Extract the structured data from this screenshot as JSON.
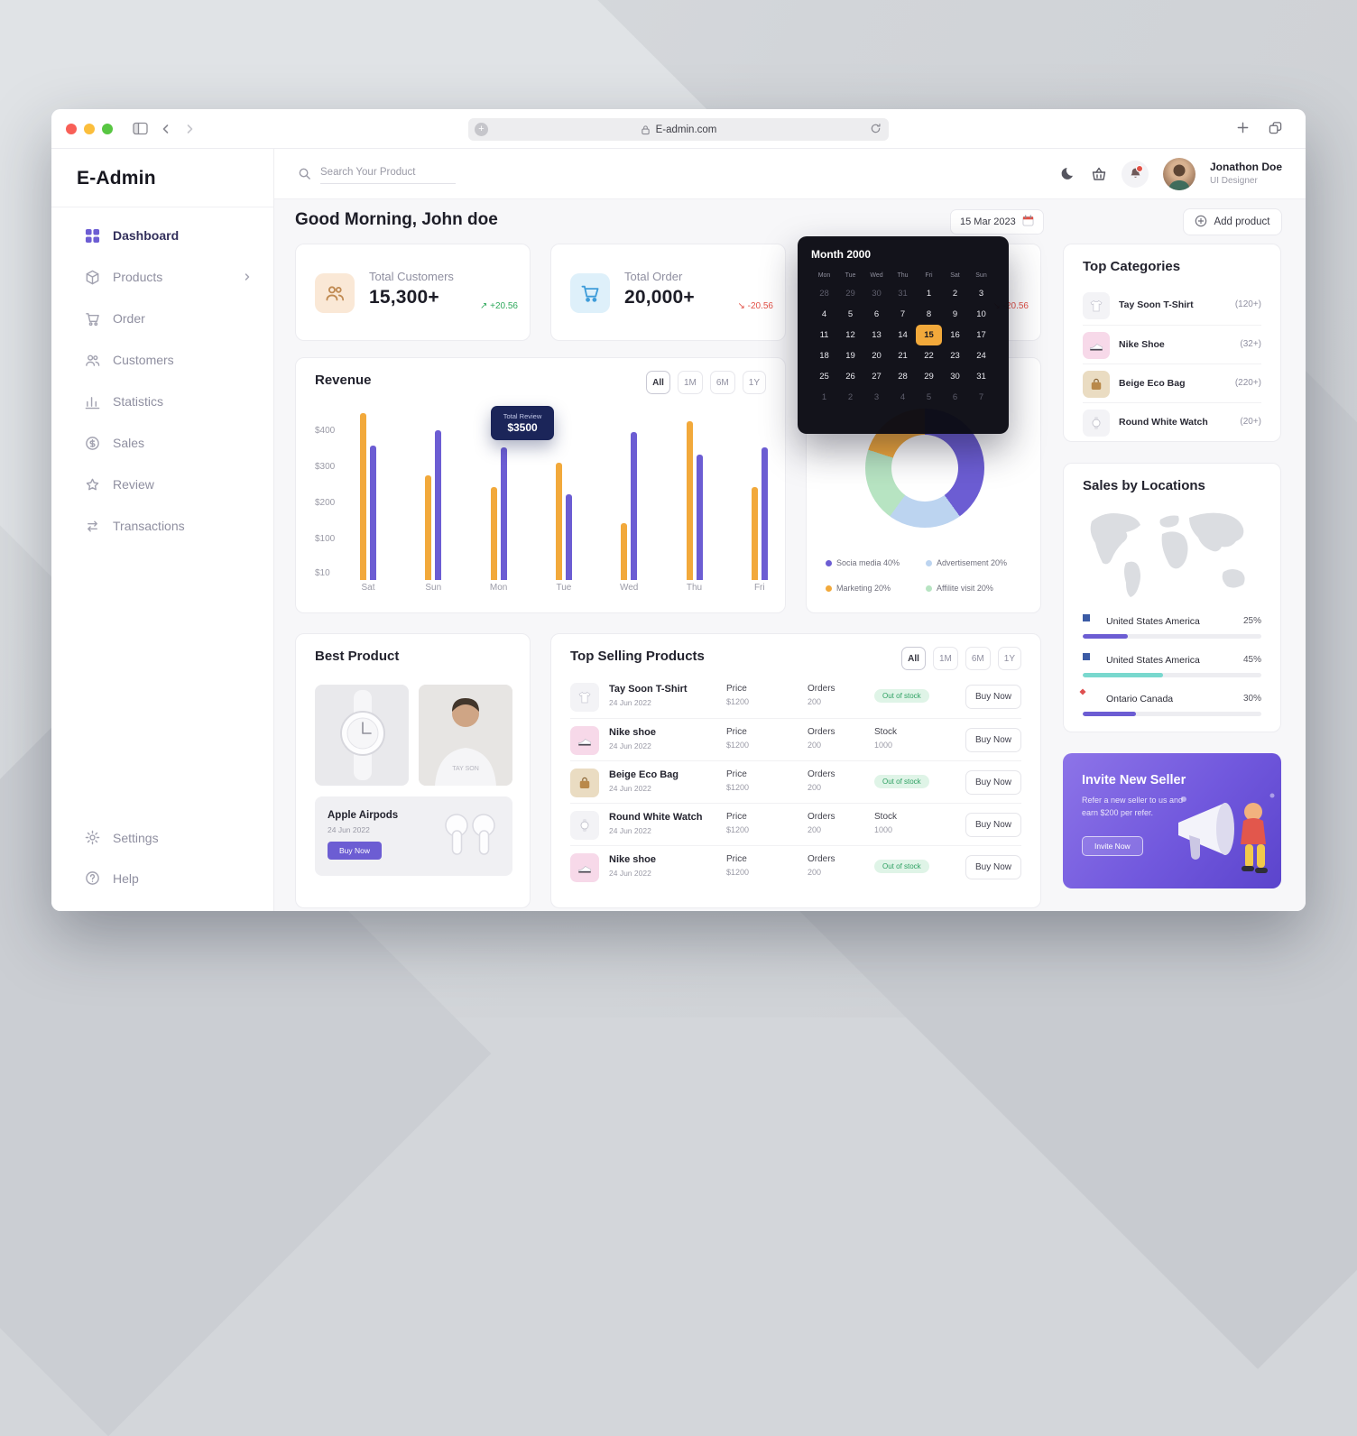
{
  "browser": {
    "url": "E-admin.com"
  },
  "sidebar": {
    "logo": "E-Admin",
    "items": [
      {
        "label": "Dashboard",
        "icon": "dashboard",
        "active": true
      },
      {
        "label": "Products",
        "icon": "products",
        "chevron": true
      },
      {
        "label": "Order",
        "icon": "order"
      },
      {
        "label": "Customers",
        "icon": "customers"
      },
      {
        "label": "Statistics",
        "icon": "statistics"
      },
      {
        "label": "Sales",
        "icon": "sales"
      },
      {
        "label": "Review",
        "icon": "review"
      },
      {
        "label": "Transactions",
        "icon": "transactions"
      }
    ],
    "footer_items": [
      {
        "label": "Settings",
        "icon": "settings"
      },
      {
        "label": "Help",
        "icon": "help"
      }
    ]
  },
  "topbar": {
    "search_placeholder": "Search Your Product",
    "user": {
      "name": "Jonathon Doe",
      "role": "UI Designer"
    }
  },
  "header": {
    "greeting": "Good Morning, John doe",
    "date_label": "15 Mar 2023",
    "add_product_label": "Add product"
  },
  "stats": {
    "cards": [
      {
        "label": "Total Customers",
        "value": "15,300+",
        "delta": "+20.56",
        "trend": "up",
        "icon": "customers-stat"
      },
      {
        "label": "Total Order",
        "value": "20,000+",
        "delta": "-20.56",
        "trend": "down",
        "icon": "order-stat"
      },
      {
        "label": "",
        "value": "",
        "delta": "-20.56",
        "trend": "down",
        "icon": ""
      }
    ]
  },
  "calendar": {
    "title": "Month 2000",
    "day_headers": [
      "Mon",
      "Tue",
      "Wed",
      "Thu",
      "Fri",
      "Sat",
      "Sun"
    ],
    "weeks": [
      [
        28,
        29,
        30,
        31,
        1,
        2,
        3
      ],
      [
        4,
        5,
        6,
        7,
        8,
        9,
        10
      ],
      [
        11,
        12,
        13,
        14,
        15,
        16,
        17
      ],
      [
        18,
        19,
        20,
        21,
        22,
        23,
        24
      ],
      [
        25,
        26,
        27,
        28,
        29,
        30,
        31
      ],
      [
        1,
        2,
        3,
        4,
        5,
        6,
        7
      ]
    ],
    "selected_week": 2,
    "selected_day": 15
  },
  "chart_data": [
    {
      "type": "bar",
      "title": "Revenue",
      "filters": [
        "All",
        "1M",
        "6M",
        "1Y"
      ],
      "categories": [
        "Sat",
        "Sun",
        "Mon",
        "Tue",
        "Wed",
        "Thu",
        "Fri"
      ],
      "series": [
        {
          "name": "yellow",
          "color": "#f2a93b",
          "values": [
            440,
            275,
            245,
            310,
            150,
            420,
            245
          ]
        },
        {
          "name": "purple",
          "color": "#6c5dd3",
          "values": [
            355,
            395,
            350,
            225,
            390,
            330,
            350
          ]
        }
      ],
      "y_ticks": [
        "$400",
        "$300",
        "$200",
        "$100",
        "$10"
      ],
      "ylim": [
        0,
        460
      ],
      "grid": false,
      "tooltip": {
        "label": "Total Review",
        "value": "$3500",
        "category": "Mon"
      }
    },
    {
      "type": "pie",
      "slices": [
        {
          "label": "Socia media 40%",
          "value": 40,
          "color": "#6c5dd3"
        },
        {
          "label": "Advertisement 20%",
          "value": 20,
          "color": "#bcd4f0"
        },
        {
          "label": "Affilite visit 20%",
          "value": 20,
          "color": "#b7e4c2"
        },
        {
          "label": "Marketing 20%",
          "value": 20,
          "color": "#f2a93b"
        }
      ],
      "legend_columns": [
        [
          0,
          3
        ],
        [
          1,
          2
        ]
      ]
    }
  ],
  "best_product": {
    "title": "Best Product",
    "feature": {
      "name": "Apple Airpods",
      "date": "24 Jun 2022",
      "cta": "Buy Now"
    }
  },
  "top_selling": {
    "title": "Top Selling Products",
    "filters": [
      "All",
      "1M",
      "6M",
      "1Y"
    ],
    "price_label": "Price",
    "orders_label": "Orders",
    "stock_label": "Stock",
    "rows": [
      {
        "name": "Tay Soon T-Shirt",
        "date": "24 Jun 2022",
        "price": "$1200",
        "orders": "200",
        "stock_badge": "Out of stock",
        "thumb": "tshirt",
        "cta": "Buy Now"
      },
      {
        "name": "Nike shoe",
        "date": "24 Jun 2022",
        "price": "$1200",
        "orders": "200",
        "stock_value": "1000",
        "thumb": "shoe",
        "cta": "Buy Now"
      },
      {
        "name": "Beige Eco Bag",
        "date": "24 Jun 2022",
        "price": "$1200",
        "orders": "200",
        "stock_badge": "Out of stock",
        "thumb": "bag",
        "cta": "Buy Now"
      },
      {
        "name": "Round White Watch",
        "date": "24 Jun 2022",
        "price": "$1200",
        "orders": "200",
        "stock_value": "1000",
        "thumb": "watch",
        "cta": "Buy Now"
      },
      {
        "name": "Nike shoe",
        "date": "24 Jun 2022",
        "price": "$1200",
        "orders": "200",
        "stock_badge": "Out of stock",
        "thumb": "shoe",
        "cta": "Buy Now"
      }
    ]
  },
  "top_categories": {
    "title": "Top Categories",
    "items": [
      {
        "name": "Tay Soon T-Shirt",
        "count": "(120+)",
        "thumb": "tshirt"
      },
      {
        "name": "Nike Shoe",
        "count": "(32+)",
        "thumb": "shoe"
      },
      {
        "name": "Beige Eco Bag",
        "count": "(220+)",
        "thumb": "bag"
      },
      {
        "name": "Round White Watch",
        "count": "(20+)",
        "thumb": "watch"
      }
    ]
  },
  "sales_locations": {
    "title": "Sales by Locations",
    "items": [
      {
        "name": "United States America",
        "pct": "25%",
        "value": 25,
        "color": "#6c5dd3",
        "flag": "us"
      },
      {
        "name": "United States America",
        "pct": "45%",
        "value": 45,
        "color": "#79d8ce",
        "flag": "us"
      },
      {
        "name": "Ontario Canada",
        "pct": "30%",
        "value": 30,
        "color": "#6c5dd3",
        "flag": "ca"
      }
    ]
  },
  "invite": {
    "title": "Invite New Seller",
    "body": "Refer a new seller to us and earn $200 per refer.",
    "cta": "Invite Now"
  }
}
